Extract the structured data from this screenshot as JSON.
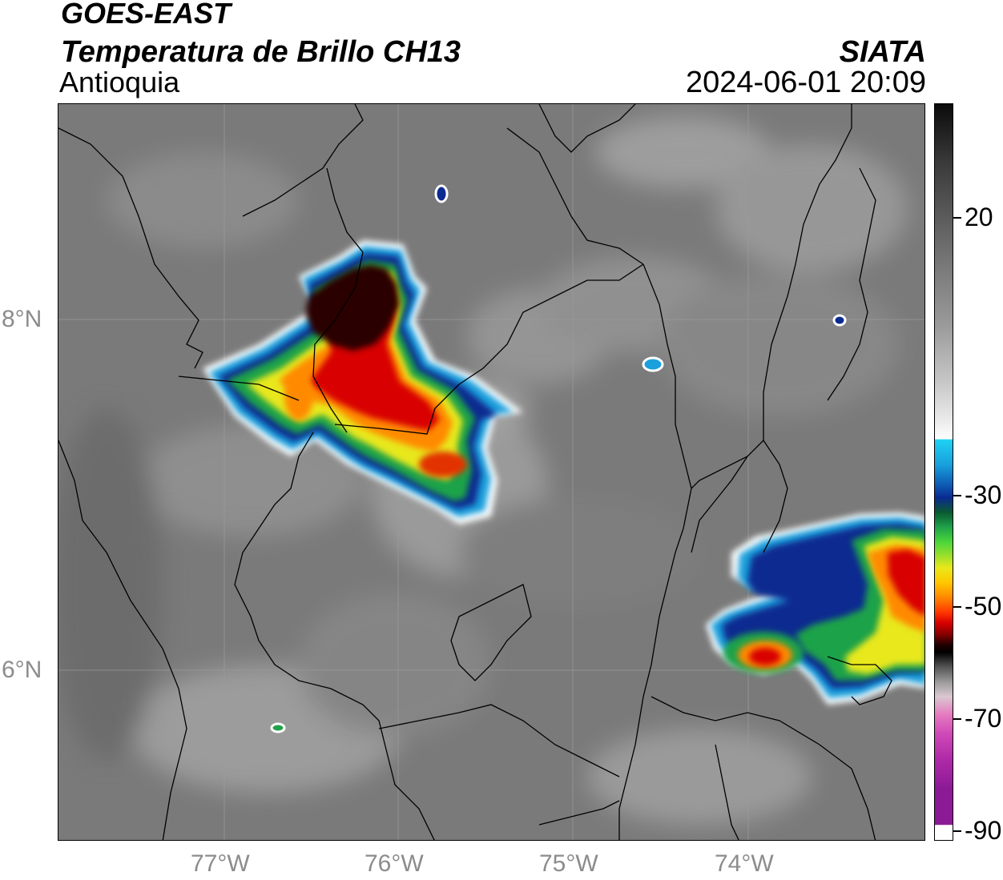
{
  "header": {
    "satellite": "GOES-EAST",
    "product": "Temperatura de Brillo CH13",
    "region": "Antioquia",
    "organization": "SIATA",
    "datetime": "2024-06-01 20:09"
  },
  "map": {
    "lon_labels": [
      "77°W",
      "76°W",
      "75°W",
      "74°W"
    ],
    "lat_labels": [
      "8°N",
      "6°N"
    ]
  },
  "colorbar": {
    "labels": [
      "20",
      "-30",
      "-50",
      "-70",
      "-90"
    ]
  },
  "colors": {
    "background": "#ffffff",
    "label_gray": "#8c8c8c"
  }
}
